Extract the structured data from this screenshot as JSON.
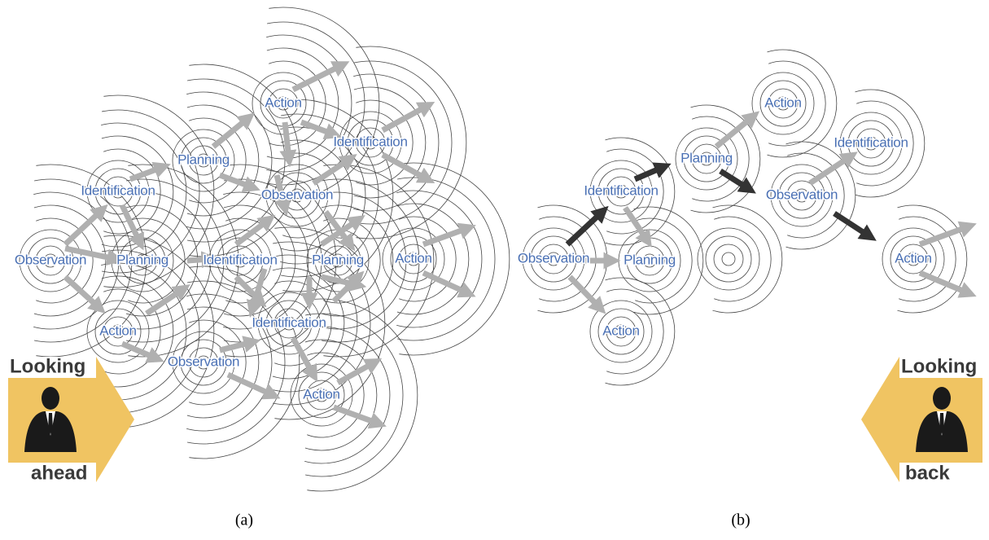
{
  "panels": [
    {
      "caption": "(a)",
      "badge": {
        "top": "Looking",
        "bottom": "ahead"
      },
      "nodes": [
        {
          "label": "Observation"
        },
        {
          "label": "Identification"
        },
        {
          "label": "Planning"
        },
        {
          "label": "Action"
        },
        {
          "label": "Planning"
        },
        {
          "label": "Identification"
        },
        {
          "label": "Observation"
        },
        {
          "label": "Action"
        },
        {
          "label": "Observation"
        },
        {
          "label": "Planning"
        },
        {
          "label": "Identification"
        },
        {
          "label": "Action"
        },
        {
          "label": "Identification"
        },
        {
          "label": "Action"
        }
      ]
    },
    {
      "caption": "(b)",
      "badge": {
        "top": "Looking",
        "bottom": "back"
      },
      "nodes": [
        {
          "label": "Observation"
        },
        {
          "label": "Identification"
        },
        {
          "label": "Planning"
        },
        {
          "label": "Action"
        },
        {
          "label": "Planning"
        },
        {
          "label": "Action"
        },
        {
          "label": "Observation"
        },
        {
          "label": "Identification"
        },
        {
          "label": "Action"
        }
      ]
    }
  ]
}
